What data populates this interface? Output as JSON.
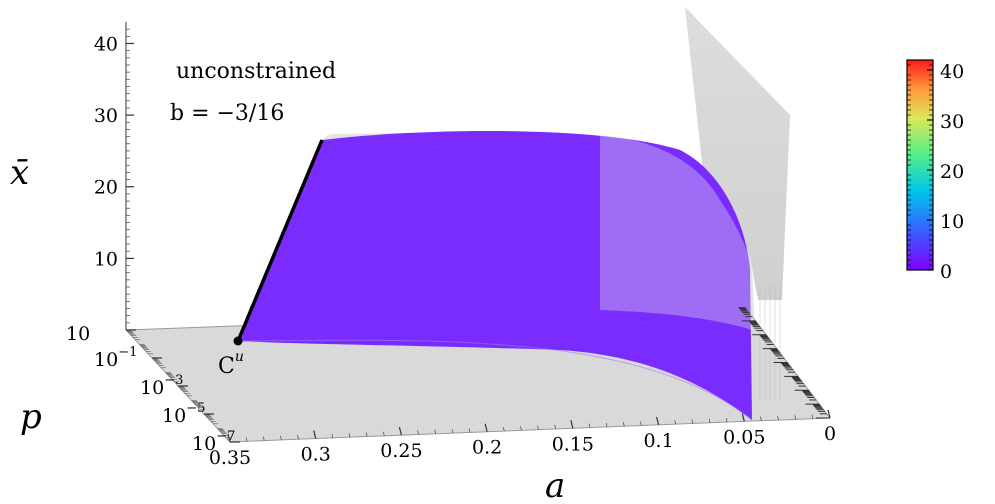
{
  "chart_data": {
    "type": "surface3d",
    "annotations": {
      "line1": "unconstrained",
      "line2": "b = −3/16",
      "point_label": "C",
      "point_superscript": "u"
    },
    "axes": {
      "z": {
        "title": "x̄",
        "ticks": [
          "10",
          "20",
          "30",
          "40"
        ],
        "tick_values": [
          10,
          20,
          30,
          40
        ],
        "range": [
          0,
          43
        ]
      },
      "p": {
        "title": "p",
        "ticks": [
          {
            "base": "10",
            "exp": ""
          },
          {
            "base": "10",
            "exp": "−1"
          },
          {
            "base": "10",
            "exp": "−3"
          },
          {
            "base": "10",
            "exp": "−5"
          },
          {
            "base": "10",
            "exp": "−7"
          }
        ],
        "tick_values": [
          10,
          0.1,
          0.001,
          1e-05,
          1e-07
        ],
        "scale": "log"
      },
      "a": {
        "title": "a",
        "ticks": [
          "0.35",
          "0.3",
          "0.25",
          "0.2",
          "0.15",
          "0.1",
          "0.05",
          "0"
        ],
        "tick_values": [
          0.35,
          0.3,
          0.25,
          0.2,
          0.15,
          0.1,
          0.05,
          0
        ],
        "range": [
          0,
          0.35
        ]
      }
    },
    "colorbar": {
      "ticks": [
        "0",
        "10",
        "20",
        "30",
        "40"
      ],
      "tick_values": [
        0,
        10,
        20,
        30,
        40
      ],
      "range": [
        0,
        42
      ],
      "colormap": "rainbow"
    },
    "surface_color_range": [
      0,
      42
    ],
    "floor_color": "#d9d9d9",
    "ghost_surface_color": "#cfcfcf"
  }
}
